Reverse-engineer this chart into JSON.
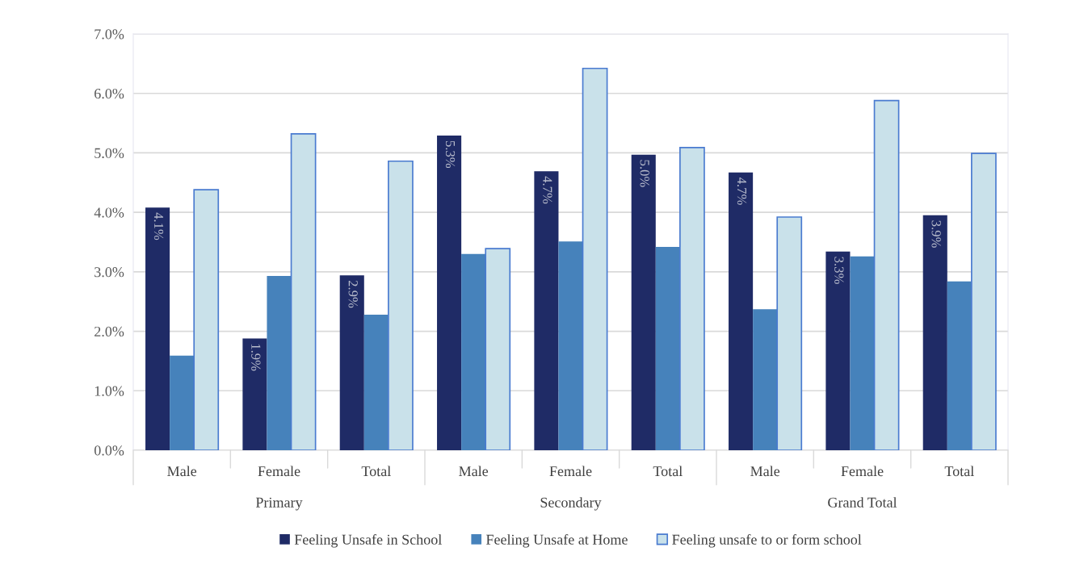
{
  "chart_data": {
    "type": "bar",
    "categories": [
      "Male",
      "Female",
      "Total",
      "Male",
      "Female",
      "Total",
      "Male",
      "Female",
      "Total"
    ],
    "series": [
      {
        "name": "Feeling Unsafe in School",
        "color": "#1f2b66",
        "values": [
          4.08,
          1.88,
          2.94,
          5.29,
          4.69,
          4.97,
          4.67,
          3.34,
          3.95
        ],
        "value_labels": [
          "4.1%",
          "1.9%",
          "2.9%",
          "5.3%",
          "4.7%",
          "5.0%",
          "4.7%",
          "3.3%",
          "3.9%"
        ]
      },
      {
        "name": "Feeling Unsafe at Home",
        "color": "#4682bb",
        "values": [
          1.59,
          2.93,
          2.28,
          3.3,
          3.51,
          3.42,
          2.37,
          3.26,
          2.84
        ]
      },
      {
        "name": "Feeling unsafe to or form school",
        "color": "#c9e1ea",
        "values": [
          4.38,
          5.32,
          4.86,
          3.39,
          6.42,
          5.09,
          3.92,
          5.88,
          4.99
        ]
      }
    ],
    "annotations": [
      "Primary",
      "Secondary",
      "Grand Total"
    ],
    "ylim": [
      0,
      7
    ],
    "yticks": [
      {
        "value": 0,
        "label": "0.0%"
      },
      {
        "value": 1,
        "label": "1.0%"
      },
      {
        "value": 2,
        "label": "2.0%"
      },
      {
        "value": 3,
        "label": "3.0%"
      },
      {
        "value": 4,
        "label": "4.0%"
      },
      {
        "value": 5,
        "label": "5.0%"
      },
      {
        "value": 6,
        "label": "6.0%"
      },
      {
        "value": 7,
        "label": "7.0%"
      }
    ],
    "grid": "y",
    "legend": "bottom"
  }
}
